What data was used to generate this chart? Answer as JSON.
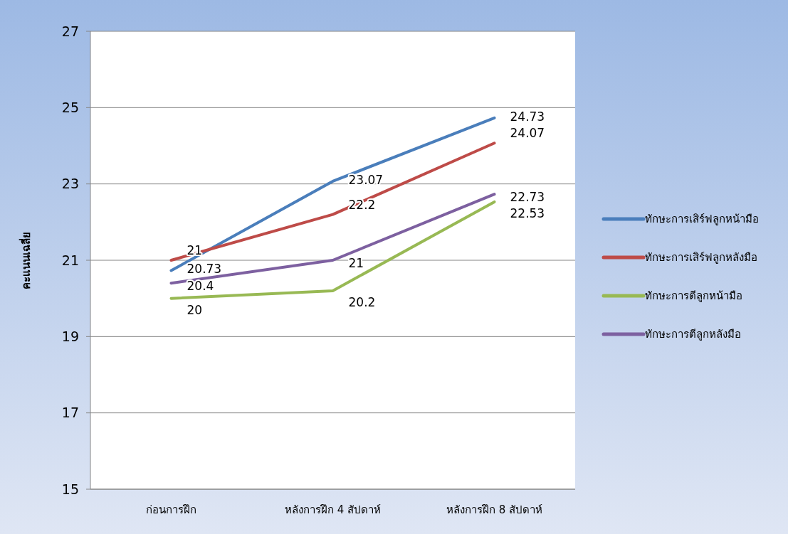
{
  "chart_data": {
    "type": "line",
    "ylabel": "คะแนนเฉลี่ย",
    "categories": [
      "ก่อนการฝึก",
      "หลังการฝึก 4 สัปดาห์",
      "หลังการฝึก 8 สัปดาห์"
    ],
    "series": [
      {
        "name": "ทักษะการเสิร์ฟลูกหน้ามือ",
        "color": "#4a7ebb",
        "values": [
          20.73,
          23.07,
          24.73
        ]
      },
      {
        "name": "ทักษะการเสิร์ฟลูกหลังมือ",
        "color": "#be4b48",
        "values": [
          21,
          22.2,
          24.07
        ]
      },
      {
        "name": "ทักษะการตีลูกหน้ามือ",
        "color": "#98b954",
        "values": [
          20,
          20.2,
          22.53
        ]
      },
      {
        "name": "ทักษะการตีลูกหลังมือ",
        "color": "#7d60a0",
        "values": [
          20.4,
          21,
          22.73
        ]
      }
    ],
    "ylim": [
      15,
      27
    ],
    "yticks": [
      15,
      17,
      19,
      21,
      23,
      25,
      27
    ],
    "grid": "y",
    "legend": "right",
    "data_labels": true,
    "marker": "none",
    "line_style": "solid"
  }
}
